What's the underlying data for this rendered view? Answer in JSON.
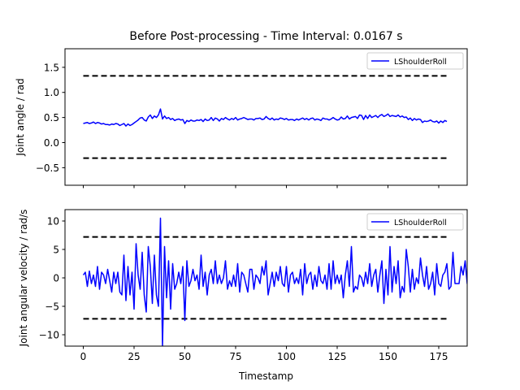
{
  "figure_title": "Before Post-processing - Time Interval: 0.0167 s",
  "colors": {
    "series": "#0000ff",
    "limits": "#000000",
    "axes": "#000000",
    "background": "#ffffff"
  },
  "chart_data": [
    {
      "type": "line",
      "title": "Before Post-processing - Time Interval: 0.0167 s",
      "xlabel": "",
      "ylabel": "Joint angle / rad",
      "xlim": [
        -9,
        189
      ],
      "ylim": [
        -0.85,
        1.87
      ],
      "xticks": [
        0,
        25,
        50,
        75,
        100,
        125,
        150,
        175
      ],
      "xtick_labels_visible": false,
      "yticks": [
        -0.5,
        0.0,
        0.5,
        1.0,
        1.5
      ],
      "ytick_labels": [
        "−0.5",
        "0.0",
        "0.5",
        "1.0",
        "1.5"
      ],
      "legend": {
        "placement": "top-right",
        "entries": [
          "LShoulderRoll"
        ]
      },
      "grid": false,
      "limit_lines": [
        {
          "style": "dashed",
          "y": 1.33,
          "x": [
            0,
            179
          ]
        },
        {
          "style": "dashed",
          "y": -0.31,
          "x": [
            0,
            179
          ]
        }
      ],
      "series": [
        {
          "name": "LShoulderRoll",
          "x_start": 0,
          "x_step": 1,
          "values": [
            0.38,
            0.39,
            0.4,
            0.38,
            0.39,
            0.41,
            0.38,
            0.4,
            0.39,
            0.37,
            0.38,
            0.36,
            0.36,
            0.35,
            0.37,
            0.36,
            0.38,
            0.37,
            0.34,
            0.36,
            0.38,
            0.33,
            0.37,
            0.34,
            0.36,
            0.39,
            0.42,
            0.45,
            0.49,
            0.5,
            0.45,
            0.43,
            0.51,
            0.55,
            0.48,
            0.53,
            0.5,
            0.55,
            0.67,
            0.47,
            0.53,
            0.48,
            0.5,
            0.46,
            0.48,
            0.44,
            0.46,
            0.47,
            0.45,
            0.46,
            0.38,
            0.44,
            0.42,
            0.45,
            0.43,
            0.43,
            0.45,
            0.44,
            0.46,
            0.42,
            0.47,
            0.44,
            0.45,
            0.5,
            0.44,
            0.49,
            0.47,
            0.43,
            0.48,
            0.46,
            0.5,
            0.47,
            0.45,
            0.48,
            0.46,
            0.5,
            0.45,
            0.47,
            0.48,
            0.5,
            0.48,
            0.46,
            0.47,
            0.47,
            0.45,
            0.48,
            0.48,
            0.49,
            0.46,
            0.47,
            0.52,
            0.48,
            0.46,
            0.49,
            0.45,
            0.47,
            0.46,
            0.49,
            0.48,
            0.46,
            0.48,
            0.45,
            0.46,
            0.46,
            0.44,
            0.47,
            0.45,
            0.47,
            0.49,
            0.46,
            0.48,
            0.45,
            0.48,
            0.49,
            0.45,
            0.47,
            0.46,
            0.44,
            0.49,
            0.47,
            0.47,
            0.45,
            0.47,
            0.5,
            0.47,
            0.45,
            0.46,
            0.51,
            0.47,
            0.48,
            0.53,
            0.47,
            0.5,
            0.51,
            0.52,
            0.48,
            0.55,
            0.54,
            0.46,
            0.54,
            0.48,
            0.55,
            0.5,
            0.52,
            0.54,
            0.5,
            0.54,
            0.56,
            0.52,
            0.54,
            0.57,
            0.52,
            0.54,
            0.53,
            0.52,
            0.55,
            0.51,
            0.53,
            0.5,
            0.51,
            0.46,
            0.49,
            0.44,
            0.48,
            0.45,
            0.47,
            0.46,
            0.4,
            0.43,
            0.42,
            0.43,
            0.45,
            0.42,
            0.41,
            0.43,
            0.39,
            0.43,
            0.4,
            0.44,
            0.42
          ]
        }
      ]
    },
    {
      "type": "line",
      "title": "",
      "xlabel": "Timestamp",
      "ylabel": "Joint angular velocity / rad/s",
      "xlim": [
        -9,
        189
      ],
      "ylim": [
        -12.0,
        12.0
      ],
      "xticks": [
        0,
        25,
        50,
        75,
        100,
        125,
        150,
        175
      ],
      "xtick_labels": [
        "0",
        "25",
        "50",
        "75",
        "100",
        "125",
        "150",
        "175"
      ],
      "yticks": [
        -10,
        -5,
        0,
        5,
        10
      ],
      "ytick_labels": [
        "−10",
        "−5",
        "0",
        "5",
        "10"
      ],
      "legend": {
        "placement": "top-right",
        "entries": [
          "LShoulderRoll"
        ]
      },
      "grid": false,
      "limit_lines": [
        {
          "style": "dashed",
          "y": 7.2,
          "x": [
            0,
            179
          ]
        },
        {
          "style": "dashed",
          "y": -7.2,
          "x": [
            0,
            179
          ]
        }
      ],
      "series": [
        {
          "name": "LShoulderRoll",
          "x_start": 0,
          "x_step": 1,
          "values": [
            0.5,
            1.0,
            -1.5,
            1.2,
            -1.0,
            0.5,
            -1.5,
            2.0,
            -2.0,
            1.0,
            0.5,
            -1.0,
            1.5,
            -0.5,
            -2.5,
            1.0,
            -1.0,
            1.0,
            -2.5,
            -3.0,
            4.0,
            -4.0,
            2.0,
            -3.0,
            1.0,
            -5.5,
            6.0,
            0.5,
            -2.0,
            4.5,
            -3.0,
            -6.0,
            5.5,
            2.0,
            -4.5,
            4.0,
            -3.0,
            -5.0,
            10.5,
            -12.0,
            5.5,
            -3.5,
            3.0,
            -5.5,
            2.5,
            -2.0,
            -1.0,
            1.0,
            -1.0,
            2.0,
            -7.5,
            3.0,
            -1.5,
            -0.5,
            1.5,
            -0.5,
            0.5,
            -2.0,
            4.0,
            -1.5,
            1.0,
            -3.0,
            0.5,
            1.5,
            -1.0,
            3.0,
            -1.0,
            0.5,
            -1.0,
            0.0,
            3.0,
            -2.0,
            -0.5,
            -1.5,
            0.5,
            -1.5,
            2.5,
            -2.5,
            1.0,
            0.5,
            -1.0,
            -2.5,
            1.5,
            1.5,
            -2.0,
            0.5,
            0.0,
            -1.0,
            2.0,
            0.5,
            3.0,
            -3.0,
            -1.0,
            1.0,
            -1.5,
            1.0,
            -0.5,
            2.0,
            -1.0,
            -1.5,
            2.0,
            -2.5,
            0.5,
            1.0,
            -1.0,
            0.0,
            -1.0,
            1.5,
            -3.0,
            2.5,
            -1.0,
            0.5,
            1.0,
            -2.0,
            0.5,
            -1.5,
            2.0,
            -0.5,
            -1.0,
            0.5,
            -2.0,
            2.5,
            -2.0,
            3.0,
            -1.0,
            0.5,
            -1.0,
            0.5,
            -3.5,
            0.5,
            3.0,
            -1.5,
            5.5,
            -2.5,
            -1.5,
            -2.0,
            0.5,
            0.0,
            -1.5,
            1.0,
            -1.0,
            2.5,
            -1.5,
            0.5,
            1.5,
            -2.5,
            0.5,
            3.0,
            -4.5,
            1.5,
            -3.0,
            5.5,
            -2.5,
            2.0,
            -1.0,
            3.0,
            -3.5,
            -1.5,
            -2.5,
            5.0,
            2.0,
            -2.5,
            1.5,
            -2.0,
            0.0,
            -1.0,
            3.5,
            0.5,
            -1.5,
            2.0,
            -2.0,
            -1.0,
            1.0,
            -3.0,
            2.5,
            -1.0,
            -1.5,
            0.5,
            1.0,
            2.5,
            -2.0,
            -1.5,
            4.5,
            -1.0,
            -1.0,
            -1.0,
            2.0,
            0.5,
            3.0,
            -1.0,
            -2.0
          ]
        }
      ]
    }
  ]
}
